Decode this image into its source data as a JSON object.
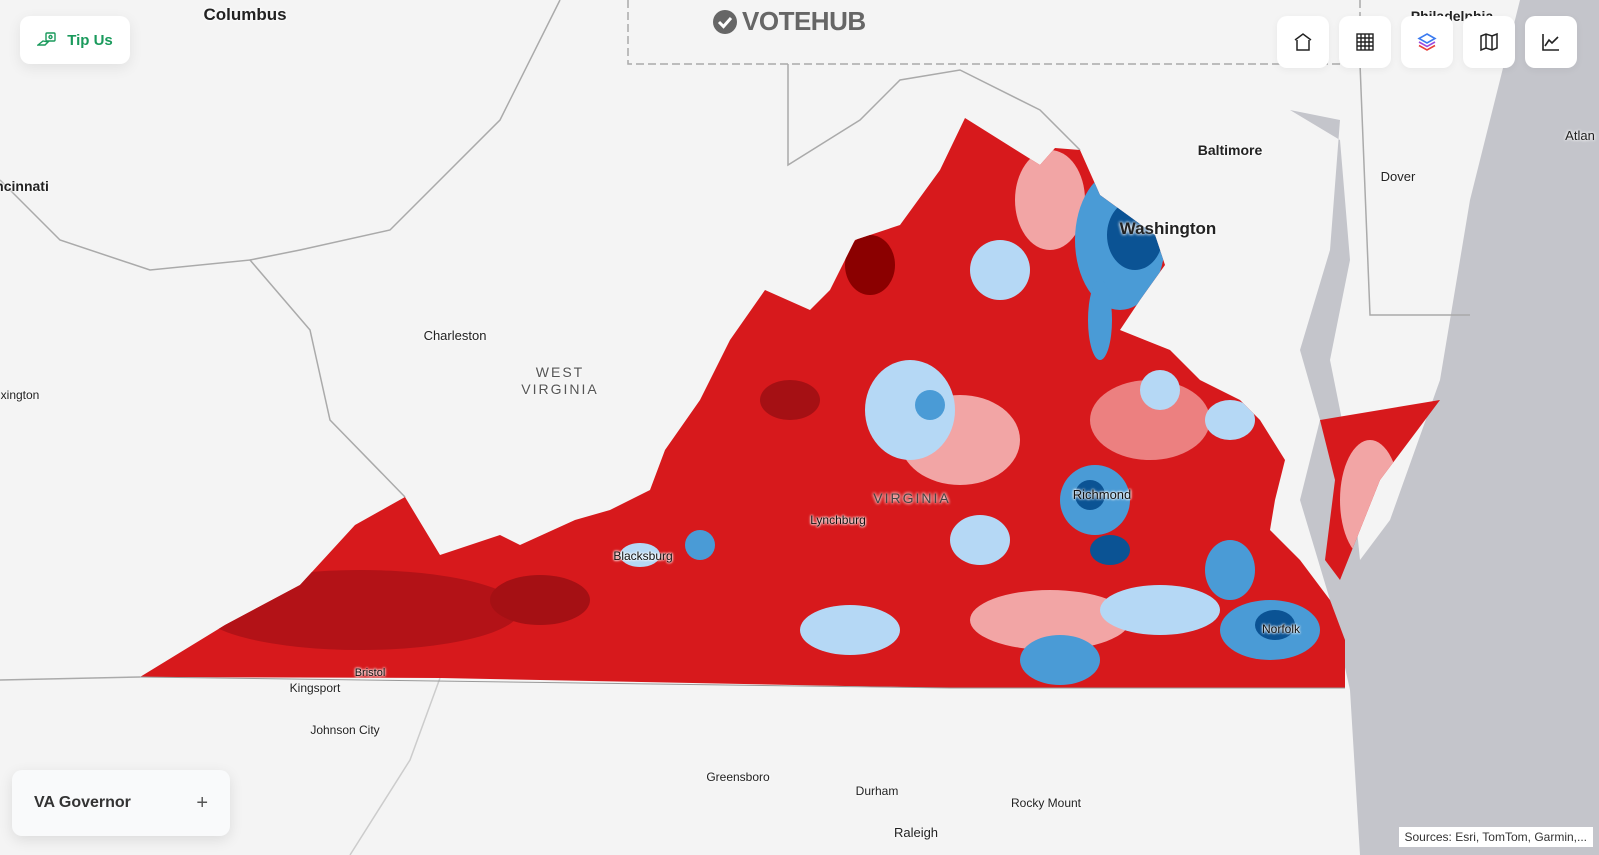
{
  "brand": {
    "name": "VOTEHUB",
    "icon": "check-circle-icon"
  },
  "tip_button": {
    "label": "Tip Us",
    "icon": "hand-coin-icon",
    "color": "#1a9a5c"
  },
  "toolbar": [
    {
      "name": "home-button",
      "icon": "home-icon"
    },
    {
      "name": "table-button",
      "icon": "grid-icon"
    },
    {
      "name": "layers-button",
      "icon": "layers-icon"
    },
    {
      "name": "basemap-button",
      "icon": "map-icon"
    },
    {
      "name": "chart-button",
      "icon": "line-chart-icon"
    }
  ],
  "race_panel": {
    "label": "VA Governor",
    "expand": "+"
  },
  "attribution": "Sources: Esri, TomTom, Garmin,...",
  "map": {
    "colors": {
      "rep_dark": "#8b0000",
      "rep": "#d7191c",
      "rep_light": "#f2a5a5",
      "dem_light": "#b5d8f5",
      "dem": "#4a9bd6",
      "dem_dark": "#0b5394"
    },
    "labels": {
      "columbus": "Columbus",
      "cincinnati": "ncinnati",
      "lexington": "xington",
      "charleston": "Charleston",
      "west_virginia": "WEST\nVIRGINIA",
      "philadelphia": "Philadelphia",
      "baltimore": "Baltimore",
      "dover": "Dover",
      "atlantic": "Atlan",
      "washington": "Washington",
      "virginia": "VIRGINIA",
      "richmond": "Richmond",
      "lynchburg": "Lynchburg",
      "blacksburg": "Blacksburg",
      "norfolk": "Norfolk",
      "bristol": "Bristol",
      "kingsport": "Kingsport",
      "johnson_city": "Johnson City",
      "greensboro": "Greensboro",
      "durham": "Durham",
      "rocky_mount": "Rocky Mount",
      "raleigh": "Raleigh"
    }
  }
}
